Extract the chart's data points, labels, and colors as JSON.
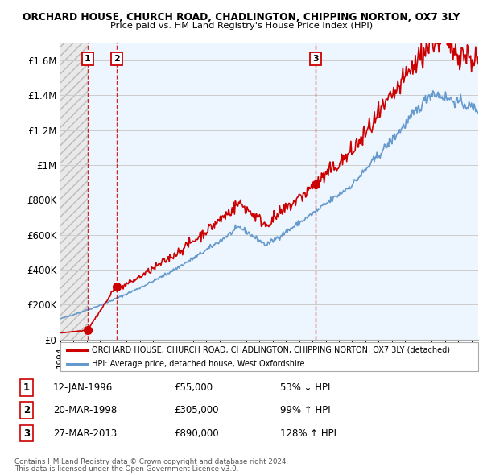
{
  "title_line1": "ORCHARD HOUSE, CHURCH ROAD, CHADLINGTON, CHIPPING NORTON, OX7 3LY",
  "title_line2": "Price paid vs. HM Land Registry's House Price Index (HPI)",
  "ylim": [
    0,
    1700000
  ],
  "yticks": [
    0,
    200000,
    400000,
    600000,
    800000,
    1000000,
    1200000,
    1400000,
    1600000
  ],
  "ytick_labels": [
    "£0",
    "£200K",
    "£400K",
    "£600K",
    "£800K",
    "£1M",
    "£1.2M",
    "£1.4M",
    "£1.6M"
  ],
  "sale_dates": [
    1996.04,
    1998.22,
    2013.23
  ],
  "sale_prices": [
    55000,
    305000,
    890000
  ],
  "sale_labels": [
    "1",
    "2",
    "3"
  ],
  "property_color": "#cc0000",
  "hpi_color": "#6699cc",
  "sale_line_color": "#cc0000",
  "legend_property_label": "ORCHARD HOUSE, CHURCH ROAD, CHADLINGTON, CHIPPING NORTON, OX7 3LY (detached)",
  "legend_hpi_label": "HPI: Average price, detached house, West Oxfordshire",
  "table_data": [
    [
      "1",
      "12-JAN-1996",
      "£55,000",
      "53% ↓ HPI"
    ],
    [
      "2",
      "20-MAR-1998",
      "£305,000",
      "99% ↑ HPI"
    ],
    [
      "3",
      "27-MAR-2013",
      "£890,000",
      "128% ↑ HPI"
    ]
  ],
  "footnote_line1": "Contains HM Land Registry data © Crown copyright and database right 2024.",
  "footnote_line2": "This data is licensed under the Open Government Licence v3.0.",
  "xmin": 1994.0,
  "xmax": 2025.5
}
